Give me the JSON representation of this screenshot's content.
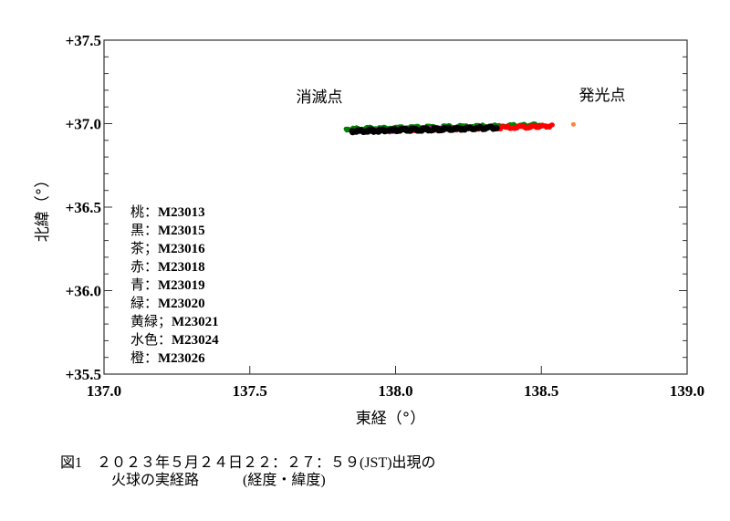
{
  "chart_data": {
    "type": "scatter",
    "title": "",
    "xlabel": "東経（°）",
    "ylabel": "北緯（°）",
    "xlim": [
      137.0,
      139.0
    ],
    "ylim": [
      35.5,
      37.5
    ],
    "xticks": [
      "137.0",
      "137.5",
      "138.0",
      "138.5",
      "139.0"
    ],
    "yticks": [
      "+37.5",
      "+37.0",
      "+36.5",
      "+36.0",
      "+35.5"
    ],
    "grid": false,
    "legend_position": "inside lower-left",
    "annotations": [
      {
        "text": "消滅点",
        "x": 137.68,
        "y": 37.12
      },
      {
        "text": "発光点",
        "x": 138.68,
        "y": 37.13
      }
    ],
    "series": [
      {
        "name": "桃 : M23013",
        "color": "#ff00ff",
        "x": [
          137.9,
          138.05,
          138.2,
          138.35
        ],
        "y": [
          36.962,
          36.967,
          36.972,
          36.978
        ]
      },
      {
        "name": "黒 : M23015",
        "color": "#000000",
        "x": [
          137.85,
          137.95,
          138.05,
          138.15,
          138.25,
          138.35
        ],
        "y": [
          36.955,
          36.959,
          36.963,
          36.967,
          36.971,
          36.977
        ]
      },
      {
        "name": "茶 : M23016",
        "color": "#8b4513",
        "x": [
          137.95,
          138.1
        ],
        "y": [
          36.96,
          36.965
        ]
      },
      {
        "name": "赤 : M23018",
        "color": "#ff0000",
        "x": [
          137.9,
          138.1,
          138.3,
          138.45,
          138.54
        ],
        "y": [
          36.955,
          36.962,
          36.972,
          36.98,
          36.987
        ]
      },
      {
        "name": "青 : M23019",
        "color": "#0000ff",
        "x": [
          137.9,
          138.0
        ],
        "y": [
          36.957,
          36.96
        ]
      },
      {
        "name": "緑 : M23020",
        "color": "#008000",
        "x": [
          137.83,
          137.95,
          138.1,
          138.25,
          138.4,
          138.5
        ],
        "y": [
          36.968,
          36.973,
          36.978,
          36.983,
          36.988,
          36.993
        ]
      },
      {
        "name": "黄緑 ; M23021",
        "color": "#7fff00",
        "x": [
          138.0,
          138.2
        ],
        "y": [
          36.965,
          36.972
        ]
      },
      {
        "name": "水色 : M23024",
        "color": "#00ffff",
        "x": [
          137.87,
          137.97
        ],
        "y": [
          36.953,
          36.957
        ]
      },
      {
        "name": "橙 : M23026",
        "color": "#ff8040",
        "x": [
          138.61
        ],
        "y": [
          36.995
        ]
      }
    ]
  },
  "annotations": {
    "extinction_point": "消滅点",
    "start_point": "発光点"
  },
  "axes": {
    "xlabel": "東経（°）",
    "ylabel": "北緯（°）",
    "xticks": [
      "137.0",
      "137.5",
      "138.0",
      "138.5",
      "139.0"
    ],
    "yticks": [
      "+37.5",
      "+37.0",
      "+36.5",
      "+36.0",
      "+35.5"
    ]
  },
  "legend": [
    {
      "color_name": "桃",
      "sep": "：",
      "code": "M23013"
    },
    {
      "color_name": "黒",
      "sep": "：",
      "code": "M23015"
    },
    {
      "color_name": "茶",
      "sep": "；",
      "code": "M23016"
    },
    {
      "color_name": "赤",
      "sep": "：",
      "code": "M23018"
    },
    {
      "color_name": "青",
      "sep": "：",
      "code": "M23019"
    },
    {
      "color_name": "緑",
      "sep": "：",
      "code": "M23020"
    },
    {
      "color_name": "黄緑",
      "sep": "；",
      "code": "M23021"
    },
    {
      "color_name": "水色",
      "sep": "：",
      "code": "M23024"
    },
    {
      "color_name": "橙",
      "sep": "：",
      "code": "M23026"
    }
  ],
  "caption": {
    "line1": "図1　２０２３年５月２４日２２：２７：５９(JST)出現の",
    "line2": "火球の実経路　　　(経度・緯度)"
  }
}
